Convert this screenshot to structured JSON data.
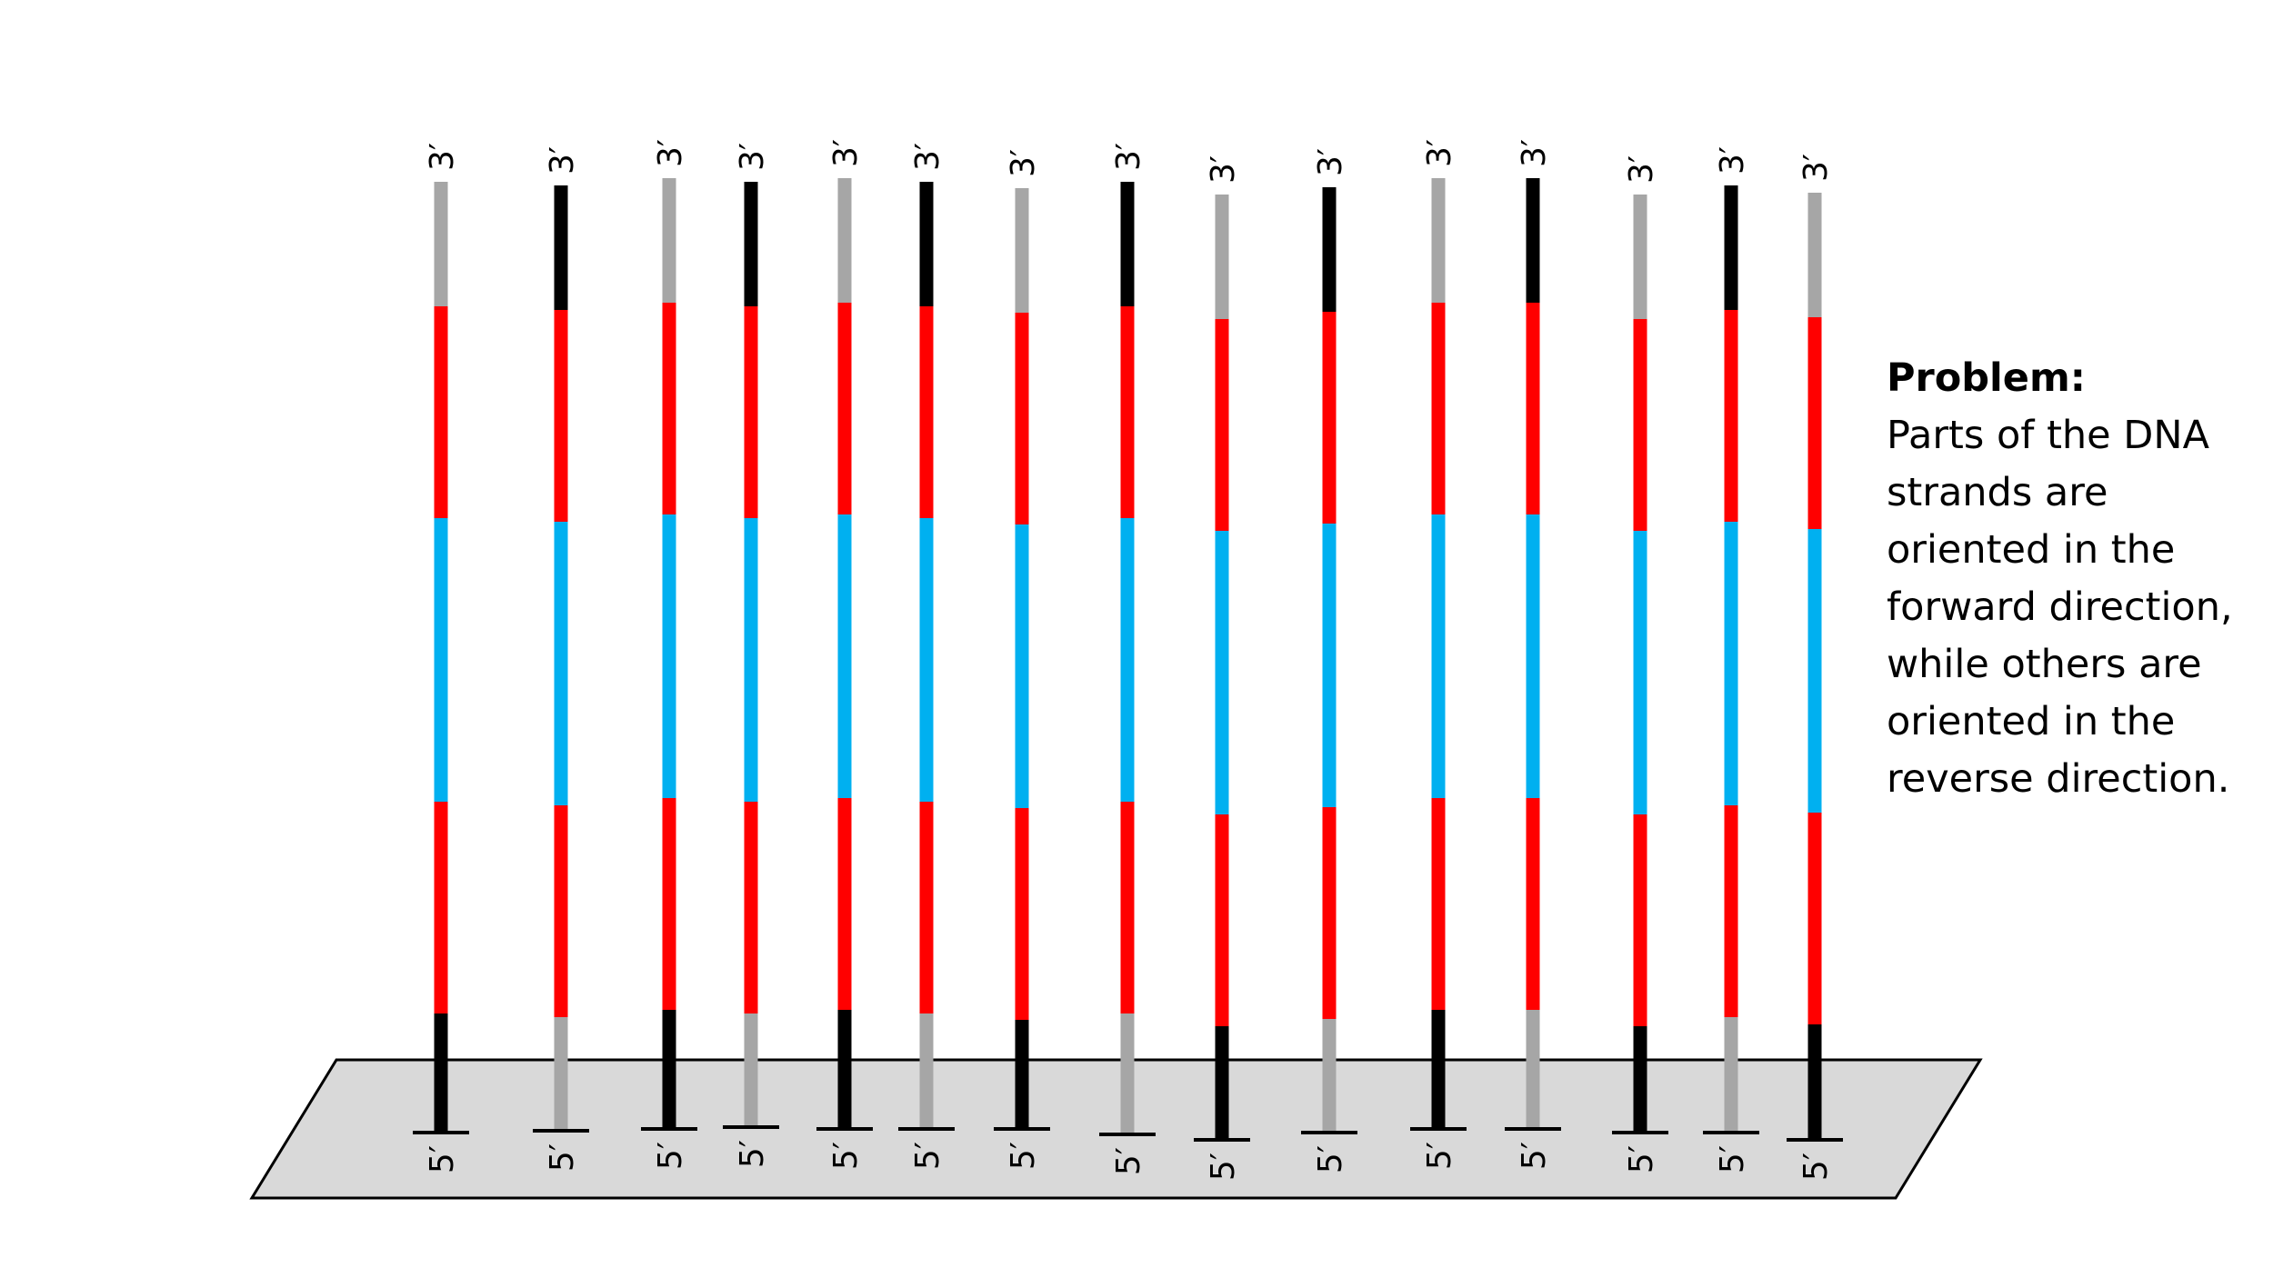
{
  "diagram": {
    "three_prime_label": "3′",
    "five_prime_label": "5′",
    "colors": {
      "gray": "#a6a6a6",
      "black": "#000000",
      "red": "#ff0000",
      "blue": "#00b0f0",
      "surface_fill": "#d9d9d9",
      "surface_stroke": "#000000"
    },
    "segment_order_bottom_to_top": [
      "end",
      "red",
      "blue",
      "red",
      "end"
    ],
    "strands": [
      {
        "bottom_end": "black",
        "top_end": "gray"
      },
      {
        "bottom_end": "gray",
        "top_end": "black"
      },
      {
        "bottom_end": "black",
        "top_end": "gray"
      },
      {
        "bottom_end": "gray",
        "top_end": "black"
      },
      {
        "bottom_end": "black",
        "top_end": "gray"
      },
      {
        "bottom_end": "gray",
        "top_end": "black"
      },
      {
        "bottom_end": "black",
        "top_end": "gray"
      },
      {
        "bottom_end": "gray",
        "top_end": "black"
      },
      {
        "bottom_end": "black",
        "top_end": "gray"
      },
      {
        "bottom_end": "gray",
        "top_end": "black"
      },
      {
        "bottom_end": "black",
        "top_end": "gray"
      },
      {
        "bottom_end": "gray",
        "top_end": "black"
      },
      {
        "bottom_end": "black",
        "top_end": "gray"
      },
      {
        "bottom_end": "gray",
        "top_end": "black"
      },
      {
        "bottom_end": "black",
        "top_end": "gray"
      }
    ]
  },
  "problem": {
    "heading": "Problem:",
    "lines": [
      "Parts of the DNA",
      "strands are",
      "oriented in the",
      "forward direction,",
      "while others are",
      "oriented in the",
      "reverse direction."
    ]
  }
}
